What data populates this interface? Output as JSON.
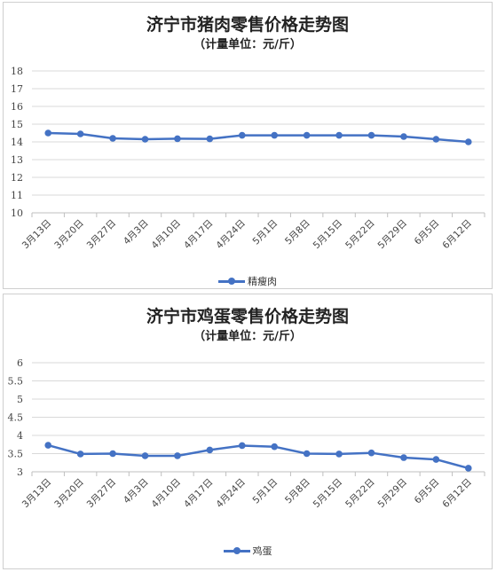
{
  "chart_data": [
    {
      "type": "line",
      "title": "济宁市猪肉零售价格走势图",
      "subtitle": "（计量单位：元/斤）",
      "categories": [
        "3月13日",
        "3月20日",
        "3月27日",
        "4月3日",
        "4月10日",
        "4月17日",
        "4月24日",
        "5月1日",
        "5月8日",
        "5月15日",
        "5月22日",
        "5月29日",
        "6月5日",
        "6月12日"
      ],
      "series": [
        {
          "name": "精瘦肉",
          "color": "#4472c4",
          "values": [
            14.5,
            14.45,
            14.2,
            14.15,
            14.18,
            14.17,
            14.37,
            14.37,
            14.37,
            14.37,
            14.37,
            14.3,
            14.15,
            14.0
          ]
        }
      ],
      "ylim": [
        10,
        18
      ],
      "ystep": 1,
      "yticks": [
        "10",
        "11",
        "12",
        "13",
        "14",
        "15",
        "16",
        "17",
        "18"
      ],
      "grid": true,
      "legend_position": "bottom"
    },
    {
      "type": "line",
      "title": "济宁市鸡蛋零售价格走势图",
      "subtitle": "（计量单位：元/斤）",
      "categories": [
        "3月13日",
        "3月20日",
        "3月27日",
        "4月3日",
        "4月10日",
        "4月17日",
        "4月24日",
        "5月1日",
        "5月8日",
        "5月15日",
        "5月22日",
        "5月29日",
        "6月5日",
        "6月12日"
      ],
      "series": [
        {
          "name": "鸡蛋",
          "color": "#4472c4",
          "values": [
            3.73,
            3.49,
            3.5,
            3.44,
            3.44,
            3.6,
            3.72,
            3.69,
            3.5,
            3.49,
            3.52,
            3.39,
            3.34,
            3.1
          ]
        }
      ],
      "ylim": [
        3,
        6
      ],
      "ystep": 0.5,
      "yticks": [
        "3",
        "3.5",
        "4",
        "4.5",
        "5",
        "5.5",
        "6"
      ],
      "grid": true,
      "legend_position": "bottom"
    }
  ]
}
